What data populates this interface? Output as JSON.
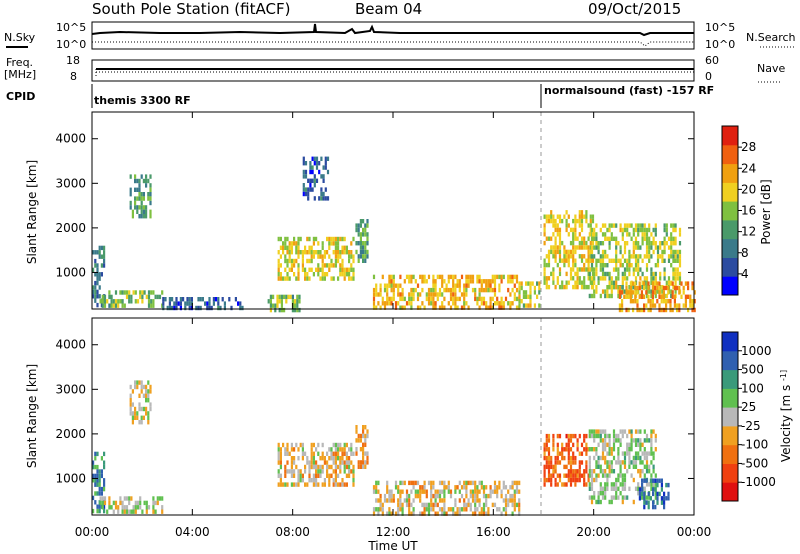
{
  "header": {
    "station": "South Pole Station (fitACF)",
    "beam": "Beam 04",
    "date": "09/Oct/2015"
  },
  "summary_panels": {
    "nsky_label": "N.Sky",
    "nsearch_label": "N.Search",
    "noise_ticks": [
      "10^5",
      "10^0"
    ],
    "freq_label_line1": "Freq.",
    "freq_label_line2": "[MHz]",
    "freq_ticks": [
      "18",
      "8"
    ],
    "nave_label": "Nave",
    "nave_ticks": [
      "60",
      "0"
    ],
    "cpid_label": "CPID",
    "cpid_1": "themis 3300 RF",
    "cpid_2": "normalsound (fast) -157 RF"
  },
  "colors": {
    "power_scale": [
      "#0000ff",
      "#2b4ba0",
      "#3a7a8a",
      "#4a9a6a",
      "#7fc040",
      "#f0d020",
      "#f0a010",
      "#f06010",
      "#e02010"
    ],
    "velocity_scale": [
      "#e01010",
      "#f04010",
      "#f07010",
      "#f0a020",
      "#b8b8b8",
      "#60c050",
      "#3a9a7a",
      "#3060b0",
      "#1030c0"
    ]
  },
  "chart_data": [
    {
      "type": "heatmap",
      "title": "Power",
      "ylabel": "Slant Range [km]",
      "yticks": [
        "1000",
        "2000",
        "3000",
        "4000"
      ],
      "ylim": [
        180,
        4600
      ],
      "colorbar_label": "Power [dB]",
      "colorbar_ticks": [
        "4",
        "8",
        "12",
        "16",
        "20",
        "24",
        "28"
      ],
      "colorbar_range": [
        0,
        30
      ],
      "echo_regions": [
        {
          "t0": 0.0,
          "t1": 0.5,
          "r0": 300,
          "r1": 1600,
          "value": 8
        },
        {
          "t0": 0.3,
          "t1": 2.8,
          "r0": 250,
          "r1": 600,
          "value": 14
        },
        {
          "t0": 1.5,
          "t1": 2.3,
          "r0": 2300,
          "r1": 3200,
          "value": 12
        },
        {
          "t0": 2.8,
          "t1": 6.0,
          "r0": 200,
          "r1": 450,
          "value": 6
        },
        {
          "t0": 7.0,
          "t1": 8.3,
          "r0": 200,
          "r1": 500,
          "value": 14
        },
        {
          "t0": 7.4,
          "t1": 10.4,
          "r0": 900,
          "r1": 1800,
          "value": 18
        },
        {
          "t0": 8.4,
          "t1": 9.4,
          "r0": 2700,
          "r1": 3600,
          "value": 6
        },
        {
          "t0": 10.5,
          "t1": 11.0,
          "r0": 1300,
          "r1": 2200,
          "value": 12
        },
        {
          "t0": 11.2,
          "t1": 17.0,
          "r0": 200,
          "r1": 950,
          "value": 20
        },
        {
          "t0": 17.0,
          "t1": 17.8,
          "r0": 300,
          "r1": 800,
          "value": 16
        },
        {
          "t0": 18.0,
          "t1": 20.0,
          "r0": 700,
          "r1": 2400,
          "value": 18
        },
        {
          "t0": 19.8,
          "t1": 23.4,
          "r0": 500,
          "r1": 2100,
          "value": 16
        },
        {
          "t0": 21.0,
          "t1": 24.0,
          "r0": 200,
          "r1": 800,
          "value": 22
        }
      ]
    },
    {
      "type": "heatmap",
      "title": "Velocity",
      "ylabel": "Slant Range [km]",
      "yticks": [
        "1000",
        "2000",
        "3000",
        "4000"
      ],
      "ylim": [
        180,
        4600
      ],
      "colorbar_label": "Velocity [m s^-1]",
      "colorbar_ticks": [
        "-1000",
        "-500",
        "-100",
        "-25",
        "25",
        "100",
        "500",
        "1000"
      ],
      "colorbar_range": [
        -1200,
        1200
      ],
      "echo_regions": [
        {
          "t0": 0.0,
          "t1": 0.5,
          "r0": 300,
          "r1": 1600,
          "value": 600
        },
        {
          "t0": 0.3,
          "t1": 2.8,
          "r0": 250,
          "r1": 600,
          "value": 60
        },
        {
          "t0": 1.5,
          "t1": 2.3,
          "r0": 2300,
          "r1": 3200,
          "value": -60
        },
        {
          "t0": 7.4,
          "t1": 10.4,
          "r0": 900,
          "r1": 1800,
          "value": -150
        },
        {
          "t0": 10.5,
          "t1": 11.0,
          "r0": 1300,
          "r1": 2200,
          "value": -300
        },
        {
          "t0": 11.2,
          "t1": 17.0,
          "r0": 200,
          "r1": 950,
          "value": -120
        },
        {
          "t0": 18.0,
          "t1": 19.8,
          "r0": 900,
          "r1": 2000,
          "value": -600
        },
        {
          "t0": 19.8,
          "t1": 22.5,
          "r0": 500,
          "r1": 2100,
          "value": 120
        },
        {
          "t0": 21.8,
          "t1": 23.0,
          "r0": 400,
          "r1": 1000,
          "value": 900
        }
      ]
    }
  ],
  "xaxis": {
    "label": "Time UT",
    "ticks": [
      "00:00",
      "04:00",
      "08:00",
      "12:00",
      "16:00",
      "20:00",
      "00:00"
    ],
    "range_hours": [
      0,
      24
    ]
  }
}
